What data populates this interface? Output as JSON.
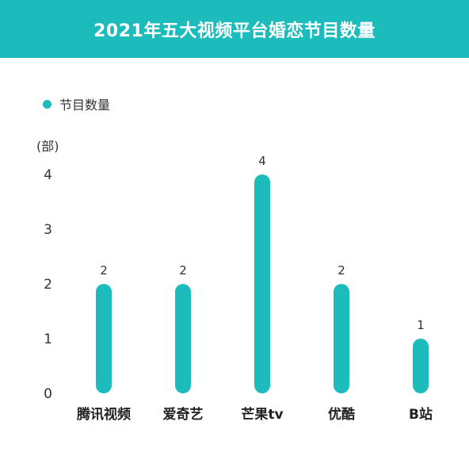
{
  "header": {
    "title": "2021年五大视频平台婚恋节目数量"
  },
  "legend": {
    "label": "节目数量",
    "color": "#1cbcbc"
  },
  "colors": {
    "bar": "#1cbcbc",
    "header_bg": "#1cbcbc"
  },
  "chart_data": {
    "type": "bar",
    "title": "2021年五大视频平台婚恋节目数量",
    "ylabel": "(部)",
    "xlabel": "",
    "categories": [
      "腾讯视频",
      "爱奇艺",
      "芒果tv",
      "优酷",
      "B站"
    ],
    "series": [
      {
        "name": "节目数量",
        "values": [
          2,
          2,
          4,
          2,
          1
        ]
      }
    ],
    "yticks": [
      0,
      1,
      2,
      3,
      4
    ],
    "ylim": [
      0,
      4
    ],
    "grid": false,
    "legend_position": "top-left"
  }
}
